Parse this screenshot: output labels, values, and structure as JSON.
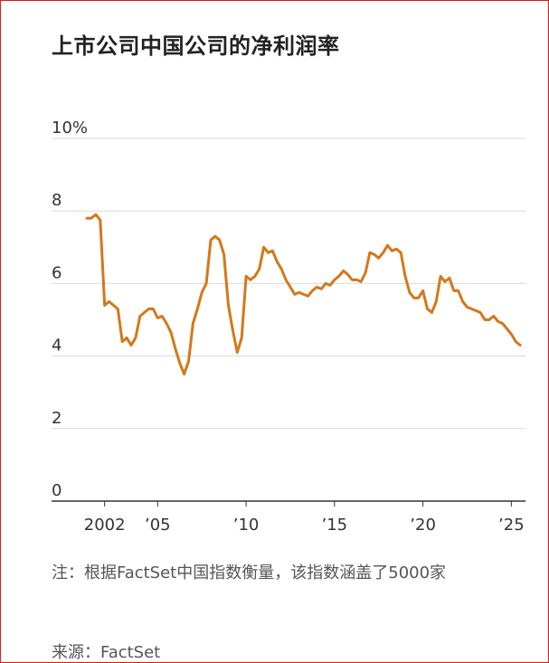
{
  "title": "上市公司中国公司的净利润率",
  "note": "注：根据FactSet中国指数衡量，该指数涵盖了5000家",
  "source": "来源：FactSet",
  "colors": {
    "line": "#d4781a",
    "grid": "#d9d9d9",
    "axis": "#333333",
    "frame": "#e01818"
  },
  "chart_data": {
    "type": "line",
    "title": "上市公司中国公司的净利润率",
    "xlabel": "",
    "ylabel": "",
    "ylim": [
      0,
      10
    ],
    "xlim": [
      1999.0,
      2025.8
    ],
    "y_ticks": [
      {
        "value": 10,
        "label": "10%"
      },
      {
        "value": 8,
        "label": "8"
      },
      {
        "value": 6,
        "label": "6"
      },
      {
        "value": 4,
        "label": "4"
      },
      {
        "value": 2,
        "label": "2"
      },
      {
        "value": 0,
        "label": "0"
      }
    ],
    "x_ticks": [
      {
        "value": 2002,
        "label": "2002"
      },
      {
        "value": 2005,
        "label": "’05"
      },
      {
        "value": 2010,
        "label": "’10"
      },
      {
        "value": 2015,
        "label": "’15"
      },
      {
        "value": 2020,
        "label": "’20"
      },
      {
        "value": 2025,
        "label": "’25"
      }
    ],
    "grid": true,
    "series": [
      {
        "color": "#d4781a",
        "points": [
          [
            2001.0,
            7.8
          ],
          [
            2001.25,
            7.8
          ],
          [
            2001.5,
            7.9
          ],
          [
            2001.75,
            7.75
          ],
          [
            2002.0,
            5.4
          ],
          [
            2002.25,
            5.5
          ],
          [
            2002.5,
            5.4
          ],
          [
            2002.75,
            5.3
          ],
          [
            2003.0,
            4.4
          ],
          [
            2003.25,
            4.5
          ],
          [
            2003.5,
            4.3
          ],
          [
            2003.75,
            4.5
          ],
          [
            2004.0,
            5.1
          ],
          [
            2004.25,
            5.2
          ],
          [
            2004.5,
            5.3
          ],
          [
            2004.75,
            5.3
          ],
          [
            2005.0,
            5.05
          ],
          [
            2005.25,
            5.1
          ],
          [
            2005.5,
            4.9
          ],
          [
            2005.75,
            4.65
          ],
          [
            2006.0,
            4.2
          ],
          [
            2006.25,
            3.8
          ],
          [
            2006.5,
            3.5
          ],
          [
            2006.75,
            3.85
          ],
          [
            2007.0,
            4.9
          ],
          [
            2007.25,
            5.3
          ],
          [
            2007.5,
            5.75
          ],
          [
            2007.75,
            6.0
          ],
          [
            2008.0,
            7.2
          ],
          [
            2008.25,
            7.3
          ],
          [
            2008.5,
            7.2
          ],
          [
            2008.75,
            6.8
          ],
          [
            2009.0,
            5.4
          ],
          [
            2009.25,
            4.7
          ],
          [
            2009.5,
            4.1
          ],
          [
            2009.75,
            4.5
          ],
          [
            2010.0,
            6.2
          ],
          [
            2010.25,
            6.1
          ],
          [
            2010.5,
            6.2
          ],
          [
            2010.75,
            6.4
          ],
          [
            2011.0,
            7.0
          ],
          [
            2011.25,
            6.85
          ],
          [
            2011.5,
            6.9
          ],
          [
            2011.75,
            6.6
          ],
          [
            2012.0,
            6.4
          ],
          [
            2012.25,
            6.1
          ],
          [
            2012.5,
            5.9
          ],
          [
            2012.75,
            5.7
          ],
          [
            2013.0,
            5.75
          ],
          [
            2013.25,
            5.7
          ],
          [
            2013.5,
            5.65
          ],
          [
            2013.75,
            5.8
          ],
          [
            2014.0,
            5.9
          ],
          [
            2014.25,
            5.85
          ],
          [
            2014.5,
            6.0
          ],
          [
            2014.75,
            5.95
          ],
          [
            2015.0,
            6.1
          ],
          [
            2015.25,
            6.2
          ],
          [
            2015.5,
            6.35
          ],
          [
            2015.75,
            6.25
          ],
          [
            2016.0,
            6.1
          ],
          [
            2016.25,
            6.1
          ],
          [
            2016.5,
            6.05
          ],
          [
            2016.75,
            6.3
          ],
          [
            2017.0,
            6.85
          ],
          [
            2017.25,
            6.8
          ],
          [
            2017.5,
            6.7
          ],
          [
            2017.75,
            6.85
          ],
          [
            2018.0,
            7.05
          ],
          [
            2018.25,
            6.9
          ],
          [
            2018.5,
            6.95
          ],
          [
            2018.75,
            6.85
          ],
          [
            2019.0,
            6.2
          ],
          [
            2019.25,
            5.75
          ],
          [
            2019.5,
            5.6
          ],
          [
            2019.75,
            5.6
          ],
          [
            2020.0,
            5.8
          ],
          [
            2020.25,
            5.3
          ],
          [
            2020.5,
            5.2
          ],
          [
            2020.75,
            5.5
          ],
          [
            2021.0,
            6.2
          ],
          [
            2021.25,
            6.05
          ],
          [
            2021.5,
            6.15
          ],
          [
            2021.75,
            5.8
          ],
          [
            2022.0,
            5.8
          ],
          [
            2022.25,
            5.5
          ],
          [
            2022.5,
            5.35
          ],
          [
            2022.75,
            5.3
          ],
          [
            2023.0,
            5.25
          ],
          [
            2023.25,
            5.2
          ],
          [
            2023.5,
            5.0
          ],
          [
            2023.75,
            5.0
          ],
          [
            2024.0,
            5.1
          ],
          [
            2024.25,
            4.95
          ],
          [
            2024.5,
            4.9
          ],
          [
            2024.75,
            4.75
          ],
          [
            2025.0,
            4.6
          ],
          [
            2025.25,
            4.4
          ],
          [
            2025.5,
            4.3
          ]
        ]
      }
    ]
  }
}
